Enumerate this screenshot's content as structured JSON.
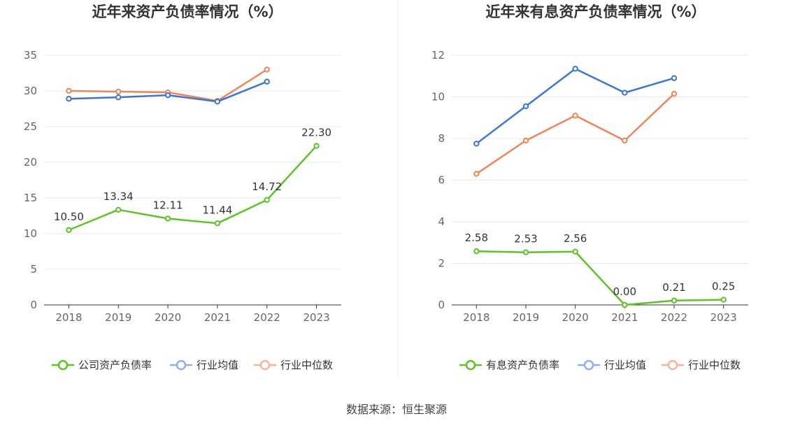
{
  "source": "数据来源：恒生聚源",
  "colors": {
    "company": "#5cc424",
    "avg": "#3d74d9",
    "median": "#ef8657",
    "avg_legend": "#8fb0ee",
    "median_legend": "#f6b49c",
    "grid": "#e8e8e8",
    "axis": "#333333"
  },
  "chart_data": [
    {
      "type": "line",
      "title": "近年来资产负债率情况（%）",
      "categories": [
        "2018",
        "2019",
        "2020",
        "2021",
        "2022",
        "2023"
      ],
      "ylim": [
        0,
        35
      ],
      "yticks": [
        0,
        5,
        10,
        15,
        20,
        25,
        30,
        35
      ],
      "grid": true,
      "legend_position": "bottom",
      "series": [
        {
          "name": "公司资产负债率",
          "key": "company",
          "values": [
            10.5,
            13.34,
            12.11,
            11.44,
            14.72,
            22.3
          ],
          "labels": [
            "10.50",
            "13.34",
            "12.11",
            "11.44",
            "14.72",
            "22.30"
          ]
        },
        {
          "name": "行业均值",
          "key": "avg",
          "values": [
            28.9,
            29.1,
            29.4,
            28.5,
            31.3,
            null
          ]
        },
        {
          "name": "行业中位数",
          "key": "median",
          "values": [
            30.0,
            29.9,
            29.8,
            28.6,
            33.0,
            null
          ]
        }
      ]
    },
    {
      "type": "line",
      "title": "近年来有息资产负债率情况（%）",
      "categories": [
        "2018",
        "2019",
        "2020",
        "2021",
        "2022",
        "2023"
      ],
      "ylim": [
        0,
        12
      ],
      "yticks": [
        0,
        2,
        4,
        6,
        8,
        10,
        12
      ],
      "grid": true,
      "legend_position": "bottom",
      "series": [
        {
          "name": "有息资产负债率",
          "key": "company",
          "values": [
            2.58,
            2.53,
            2.56,
            0.0,
            0.21,
            0.25
          ],
          "labels": [
            "2.58",
            "2.53",
            "2.56",
            "0.00",
            "0.21",
            "0.25"
          ]
        },
        {
          "name": "行业均值",
          "key": "avg",
          "values": [
            7.75,
            9.55,
            11.35,
            10.2,
            10.9,
            null
          ]
        },
        {
          "name": "行业中位数",
          "key": "median",
          "values": [
            6.3,
            7.9,
            9.1,
            7.9,
            10.15,
            null
          ]
        }
      ]
    }
  ]
}
